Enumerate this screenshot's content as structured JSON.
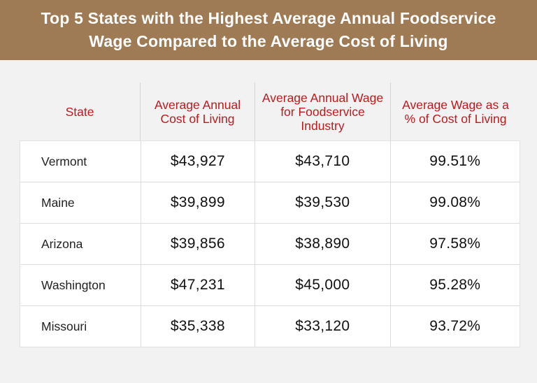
{
  "title": {
    "line1": "Top 5 States with the Highest Average Annual Foodservice",
    "line2": "Wage Compared to the Average Cost of Living"
  },
  "colors": {
    "banner": "#9e7a55",
    "header_text": "#c0191d",
    "background": "#f2f2f2"
  },
  "chart_data": {
    "type": "table",
    "title": "Top 5 States with the Highest Average Annual Foodservice Wage Compared to the Average Cost of Living",
    "columns": [
      "State",
      "Average Annual Cost of Living",
      "Average Annual Wage for Foodservice Industry",
      "Average Wage as a % of Cost of Living"
    ],
    "header_lines": [
      [
        "State"
      ],
      [
        "Average Annual",
        "Cost of Living"
      ],
      [
        "Average Annual Wage",
        "for Foodservice",
        "Industry"
      ],
      [
        "Average Wage as a",
        "% of Cost of Living"
      ]
    ],
    "rows": [
      [
        "Vermont",
        "$43,927",
        "$43,710",
        "99.51%"
      ],
      [
        "Maine",
        "$39,899",
        "$39,530",
        "99.08%"
      ],
      [
        "Arizona",
        "$39,856",
        "$38,890",
        "97.58%"
      ],
      [
        "Washington",
        "$47,231",
        "$45,000",
        "95.28%"
      ],
      [
        "Missouri",
        "$35,338",
        "$33,120",
        "93.72%"
      ]
    ]
  }
}
